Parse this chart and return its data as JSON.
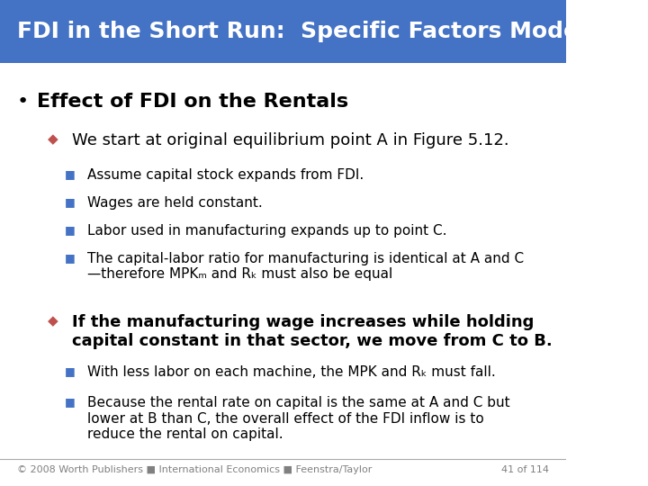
{
  "title": "FDI in the Short Run:  Specific Factors Model",
  "title_bg_color": "#4472C4",
  "title_text_color": "#FFFFFF",
  "bg_color": "#FFFFFF",
  "bullet1_text": "Effect of FDI on the Rentals",
  "bullet1_color": "#000000",
  "bullet1_marker_color": "#000000",
  "sub_bullet1_text": "We start at original equilibrium point A in Figure 5.12.",
  "sub_bullet1_marker_color": "#C0504D",
  "sub_sub_bullets1": [
    "Assume capital stock expands from FDI.",
    "Wages are held constant.",
    "Labor used in manufacturing expands up to point C.",
    "The capital-labor ratio for manufacturing is identical at A and C\n—therefore MPKₘ and Rₖ must also be equal"
  ],
  "sub_bullet2_text": "If the manufacturing wage increases while holding\ncapital constant in that sector, we move from C to B.",
  "sub_bullet2_marker_color": "#C0504D",
  "sub_sub_bullets2": [
    "With less labor on each machine, the MPK and Rₖ must fall.",
    "Because the rental rate on capital is the same at A and C but\nlower at B than C, the overall effect of the FDI inflow is to\nreduce the rental on capital."
  ],
  "footer_text": "© 2008 Worth Publishers ■ International Economics ■ Feenstra/Taylor",
  "footer_right": "41 of 114",
  "footer_color": "#808080",
  "sub_sub_marker_color": "#4472C4",
  "body_text_color": "#000000"
}
